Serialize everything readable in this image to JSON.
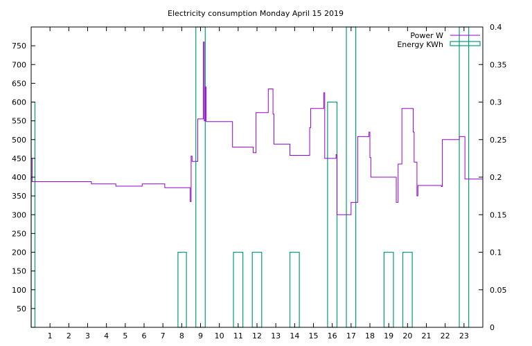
{
  "chart_data": {
    "type": "line",
    "title": "Electricity consumption Monday April 15 2019",
    "x_ticks": [
      1,
      2,
      3,
      4,
      5,
      6,
      7,
      8,
      9,
      10,
      11,
      12,
      13,
      14,
      15,
      16,
      17,
      18,
      19,
      20,
      21,
      22,
      23
    ],
    "xlim": [
      0,
      24
    ],
    "ylim_left": [
      0,
      800
    ],
    "ylim_right": [
      0,
      0.4
    ],
    "y_ticks_left": [
      50,
      100,
      150,
      200,
      250,
      300,
      350,
      400,
      450,
      500,
      550,
      600,
      650,
      700,
      750
    ],
    "y_ticks_right": [
      0,
      0.05,
      0.1,
      0.15,
      0.2,
      0.25,
      0.3,
      0.35,
      0.4
    ],
    "y_tick_labels_right": [
      "0",
      "0.05",
      "0.1",
      "0.15",
      "0.2",
      "0.25",
      "0.3",
      "0.35",
      "0.4"
    ],
    "legend_position": "top-right",
    "series": [
      {
        "name": "Power W",
        "axis": "left",
        "color": "#9400d3",
        "points": [
          [
            0,
            450
          ],
          [
            0.05,
            450
          ],
          [
            0.05,
            388
          ],
          [
            3.2,
            388
          ],
          [
            3.2,
            382
          ],
          [
            4.5,
            382
          ],
          [
            4.5,
            376
          ],
          [
            5.9,
            376
          ],
          [
            5.9,
            382
          ],
          [
            7.1,
            382
          ],
          [
            7.1,
            372
          ],
          [
            8.45,
            372
          ],
          [
            8.45,
            335
          ],
          [
            8.5,
            335
          ],
          [
            8.5,
            456
          ],
          [
            8.55,
            456
          ],
          [
            8.55,
            442
          ],
          [
            8.85,
            442
          ],
          [
            8.85,
            555
          ],
          [
            9.15,
            555
          ],
          [
            9.15,
            760
          ],
          [
            9.2,
            760
          ],
          [
            9.2,
            550
          ],
          [
            9.25,
            550
          ],
          [
            9.25,
            640
          ],
          [
            9.3,
            640
          ],
          [
            9.3,
            548
          ],
          [
            10.7,
            548
          ],
          [
            10.7,
            480
          ],
          [
            11.8,
            480
          ],
          [
            11.8,
            465
          ],
          [
            11.95,
            465
          ],
          [
            11.95,
            572
          ],
          [
            12.6,
            572
          ],
          [
            12.6,
            635
          ],
          [
            12.85,
            635
          ],
          [
            12.85,
            568
          ],
          [
            12.9,
            568
          ],
          [
            12.9,
            488
          ],
          [
            13.75,
            488
          ],
          [
            13.75,
            458
          ],
          [
            14.8,
            458
          ],
          [
            14.8,
            532
          ],
          [
            14.85,
            532
          ],
          [
            14.85,
            583
          ],
          [
            15.55,
            583
          ],
          [
            15.55,
            625
          ],
          [
            15.6,
            625
          ],
          [
            15.6,
            450
          ],
          [
            16.2,
            450
          ],
          [
            16.2,
            460
          ],
          [
            16.25,
            460
          ],
          [
            16.25,
            300
          ],
          [
            17,
            300
          ],
          [
            17,
            333
          ],
          [
            17.35,
            333
          ],
          [
            17.35,
            508
          ],
          [
            17.95,
            508
          ],
          [
            17.95,
            520
          ],
          [
            18.0,
            520
          ],
          [
            18.0,
            452
          ],
          [
            18.05,
            452
          ],
          [
            18.05,
            400
          ],
          [
            19.4,
            400
          ],
          [
            19.4,
            333
          ],
          [
            19.5,
            333
          ],
          [
            19.5,
            435
          ],
          [
            19.7,
            435
          ],
          [
            19.7,
            583
          ],
          [
            20.3,
            583
          ],
          [
            20.3,
            520
          ],
          [
            20.35,
            520
          ],
          [
            20.35,
            440
          ],
          [
            20.5,
            440
          ],
          [
            20.5,
            350
          ],
          [
            20.55,
            350
          ],
          [
            20.55,
            378
          ],
          [
            21.8,
            378
          ],
          [
            21.8,
            375
          ],
          [
            21.85,
            375
          ],
          [
            21.85,
            500
          ],
          [
            22.75,
            500
          ],
          [
            22.75,
            508
          ],
          [
            23.05,
            508
          ],
          [
            23.05,
            395
          ],
          [
            24,
            395
          ]
        ]
      },
      {
        "name": "Energy KWh",
        "axis": "right",
        "color": "#009e73",
        "bars": [
          {
            "x0": 0,
            "x1": 0.2,
            "value": 0.3
          },
          {
            "x0": 7.8,
            "x1": 8.25,
            "value": 0.1
          },
          {
            "x0": 8.75,
            "x1": 9.25,
            "value": 0.4
          },
          {
            "x0": 10.75,
            "x1": 11.25,
            "value": 0.1
          },
          {
            "x0": 11.75,
            "x1": 12.25,
            "value": 0.1
          },
          {
            "x0": 13.75,
            "x1": 14.25,
            "value": 0.1
          },
          {
            "x0": 15.75,
            "x1": 16.25,
            "value": 0.3
          },
          {
            "x0": 16.75,
            "x1": 17.25,
            "value": 0.4
          },
          {
            "x0": 18.75,
            "x1": 19.25,
            "value": 0.1
          },
          {
            "x0": 19.75,
            "x1": 20.25,
            "value": 0.1
          },
          {
            "x0": 22.75,
            "x1": 23.25,
            "value": 0.4
          }
        ]
      }
    ]
  }
}
